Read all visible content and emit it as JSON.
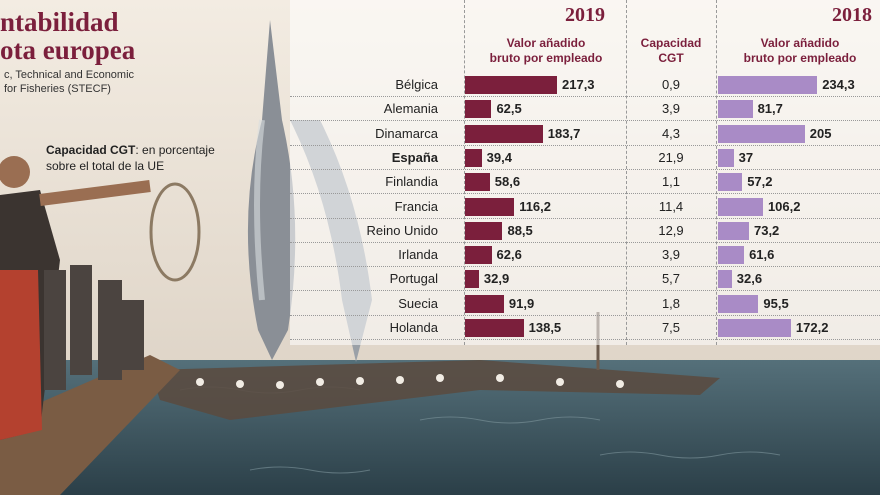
{
  "header": {
    "title_line1": "ntabilidad",
    "title_line2": "ota europea",
    "source_line1": "c, Technical and Economic",
    "source_line2": "for Fisheries (STECF)",
    "note_bold": "Capacidad CGT",
    "note_rest": ": en porcentaje",
    "note_line2": "sobre el total de la UE"
  },
  "colors": {
    "bar_2019": "#7b1f3c",
    "bar_2018": "#a98bc6",
    "title": "#7b1f3c"
  },
  "chart_data": {
    "type": "bar",
    "orientation": "horizontal",
    "categories": [
      "Bélgica",
      "Alemania",
      "Dinamarca",
      "España",
      "Finlandia",
      "Francia",
      "Reino Unido",
      "Irlanda",
      "Portugal",
      "Suecia",
      "Holanda"
    ],
    "highlight_category": "España",
    "series": [
      {
        "name": "2019",
        "label_line1": "Valor añadido",
        "label_line2": "bruto por empleado",
        "values": [
          217.3,
          62.5,
          183.7,
          39.4,
          58.6,
          116.2,
          88.5,
          62.6,
          32.9,
          91.9,
          138.5
        ],
        "value_labels": [
          "217,3",
          "62,5",
          "183,7",
          "39,4",
          "58,6",
          "116,2",
          "88,5",
          "62,6",
          "32,9",
          "91,9",
          "138,5"
        ]
      },
      {
        "name": "2019",
        "label_line1": "Capacidad",
        "label_line2": "CGT",
        "values": [
          0.9,
          3.9,
          4.3,
          21.9,
          1.1,
          11.4,
          12.9,
          3.9,
          5.7,
          1.8,
          7.5
        ],
        "value_labels": [
          "0,9",
          "3,9",
          "4,3",
          "21,9",
          "1,1",
          "11,4",
          "12,9",
          "3,9",
          "5,7",
          "1,8",
          "7,5"
        ]
      },
      {
        "name": "2018",
        "label_line1": "Valor añadido",
        "label_line2": "bruto por empleado",
        "values": [
          234.3,
          81.7,
          205,
          37,
          57.2,
          106.2,
          73.2,
          61.6,
          32.6,
          95.5,
          172.2
        ],
        "value_labels": [
          "234,3",
          "81,7",
          "205",
          "37",
          "57,2",
          "106,2",
          "73,2",
          "61,6",
          "32,6",
          "95,5",
          "172,2"
        ]
      }
    ],
    "year_labels": [
      "2019",
      "2018"
    ]
  }
}
